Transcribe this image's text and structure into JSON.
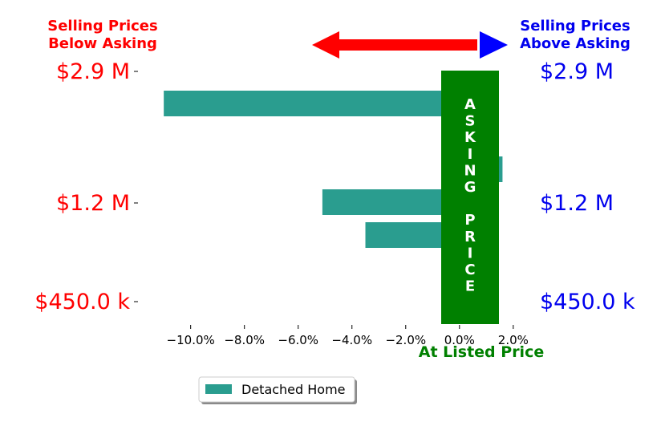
{
  "chart_data": {
    "type": "bar",
    "orientation": "horizontal",
    "categories": [
      "$2.9 M",
      "",
      "",
      "$1.2 M",
      "",
      "",
      "$450.0 k"
    ],
    "left_tick_labels": [
      "$2.9 M",
      "$1.2 M",
      "$450.0 k"
    ],
    "right_tick_labels": [
      "$2.9 M",
      "$1.2 M",
      "$450.0 k"
    ],
    "series": [
      {
        "name": "Detached Home",
        "color": "#2a9d8f",
        "values": [
          -11.0,
          1.2,
          1.6,
          -5.1,
          -3.5,
          1.2,
          1.1
        ]
      }
    ],
    "xlim": [
      -11.9,
      2.9
    ],
    "xticks": [
      -10,
      -8,
      -6,
      -4,
      -2,
      0,
      2
    ],
    "xtick_labels": [
      "−10.0%",
      "−8.0%",
      "−6.0%",
      "−4.0%",
      "−2.0%",
      "0.0%",
      "2.0%"
    ],
    "grid": false,
    "legend_position": "below",
    "annotations": {
      "below_asking": [
        "Selling Prices",
        "Below Asking"
      ],
      "above_asking": [
        "Selling Prices",
        "Above Asking"
      ],
      "at_listed": "At Listed Price",
      "asking_price_letters": [
        "A",
        "S",
        "K",
        "I",
        "N",
        "G",
        "",
        "P",
        "R",
        "I",
        "C",
        "E"
      ]
    },
    "colors": {
      "below": "#ff0000",
      "above": "#0000ee",
      "asking_band": "#008000",
      "at_listed": "#008000",
      "arrow_red": "#ff0000",
      "arrow_blue": "#0000ff"
    }
  }
}
